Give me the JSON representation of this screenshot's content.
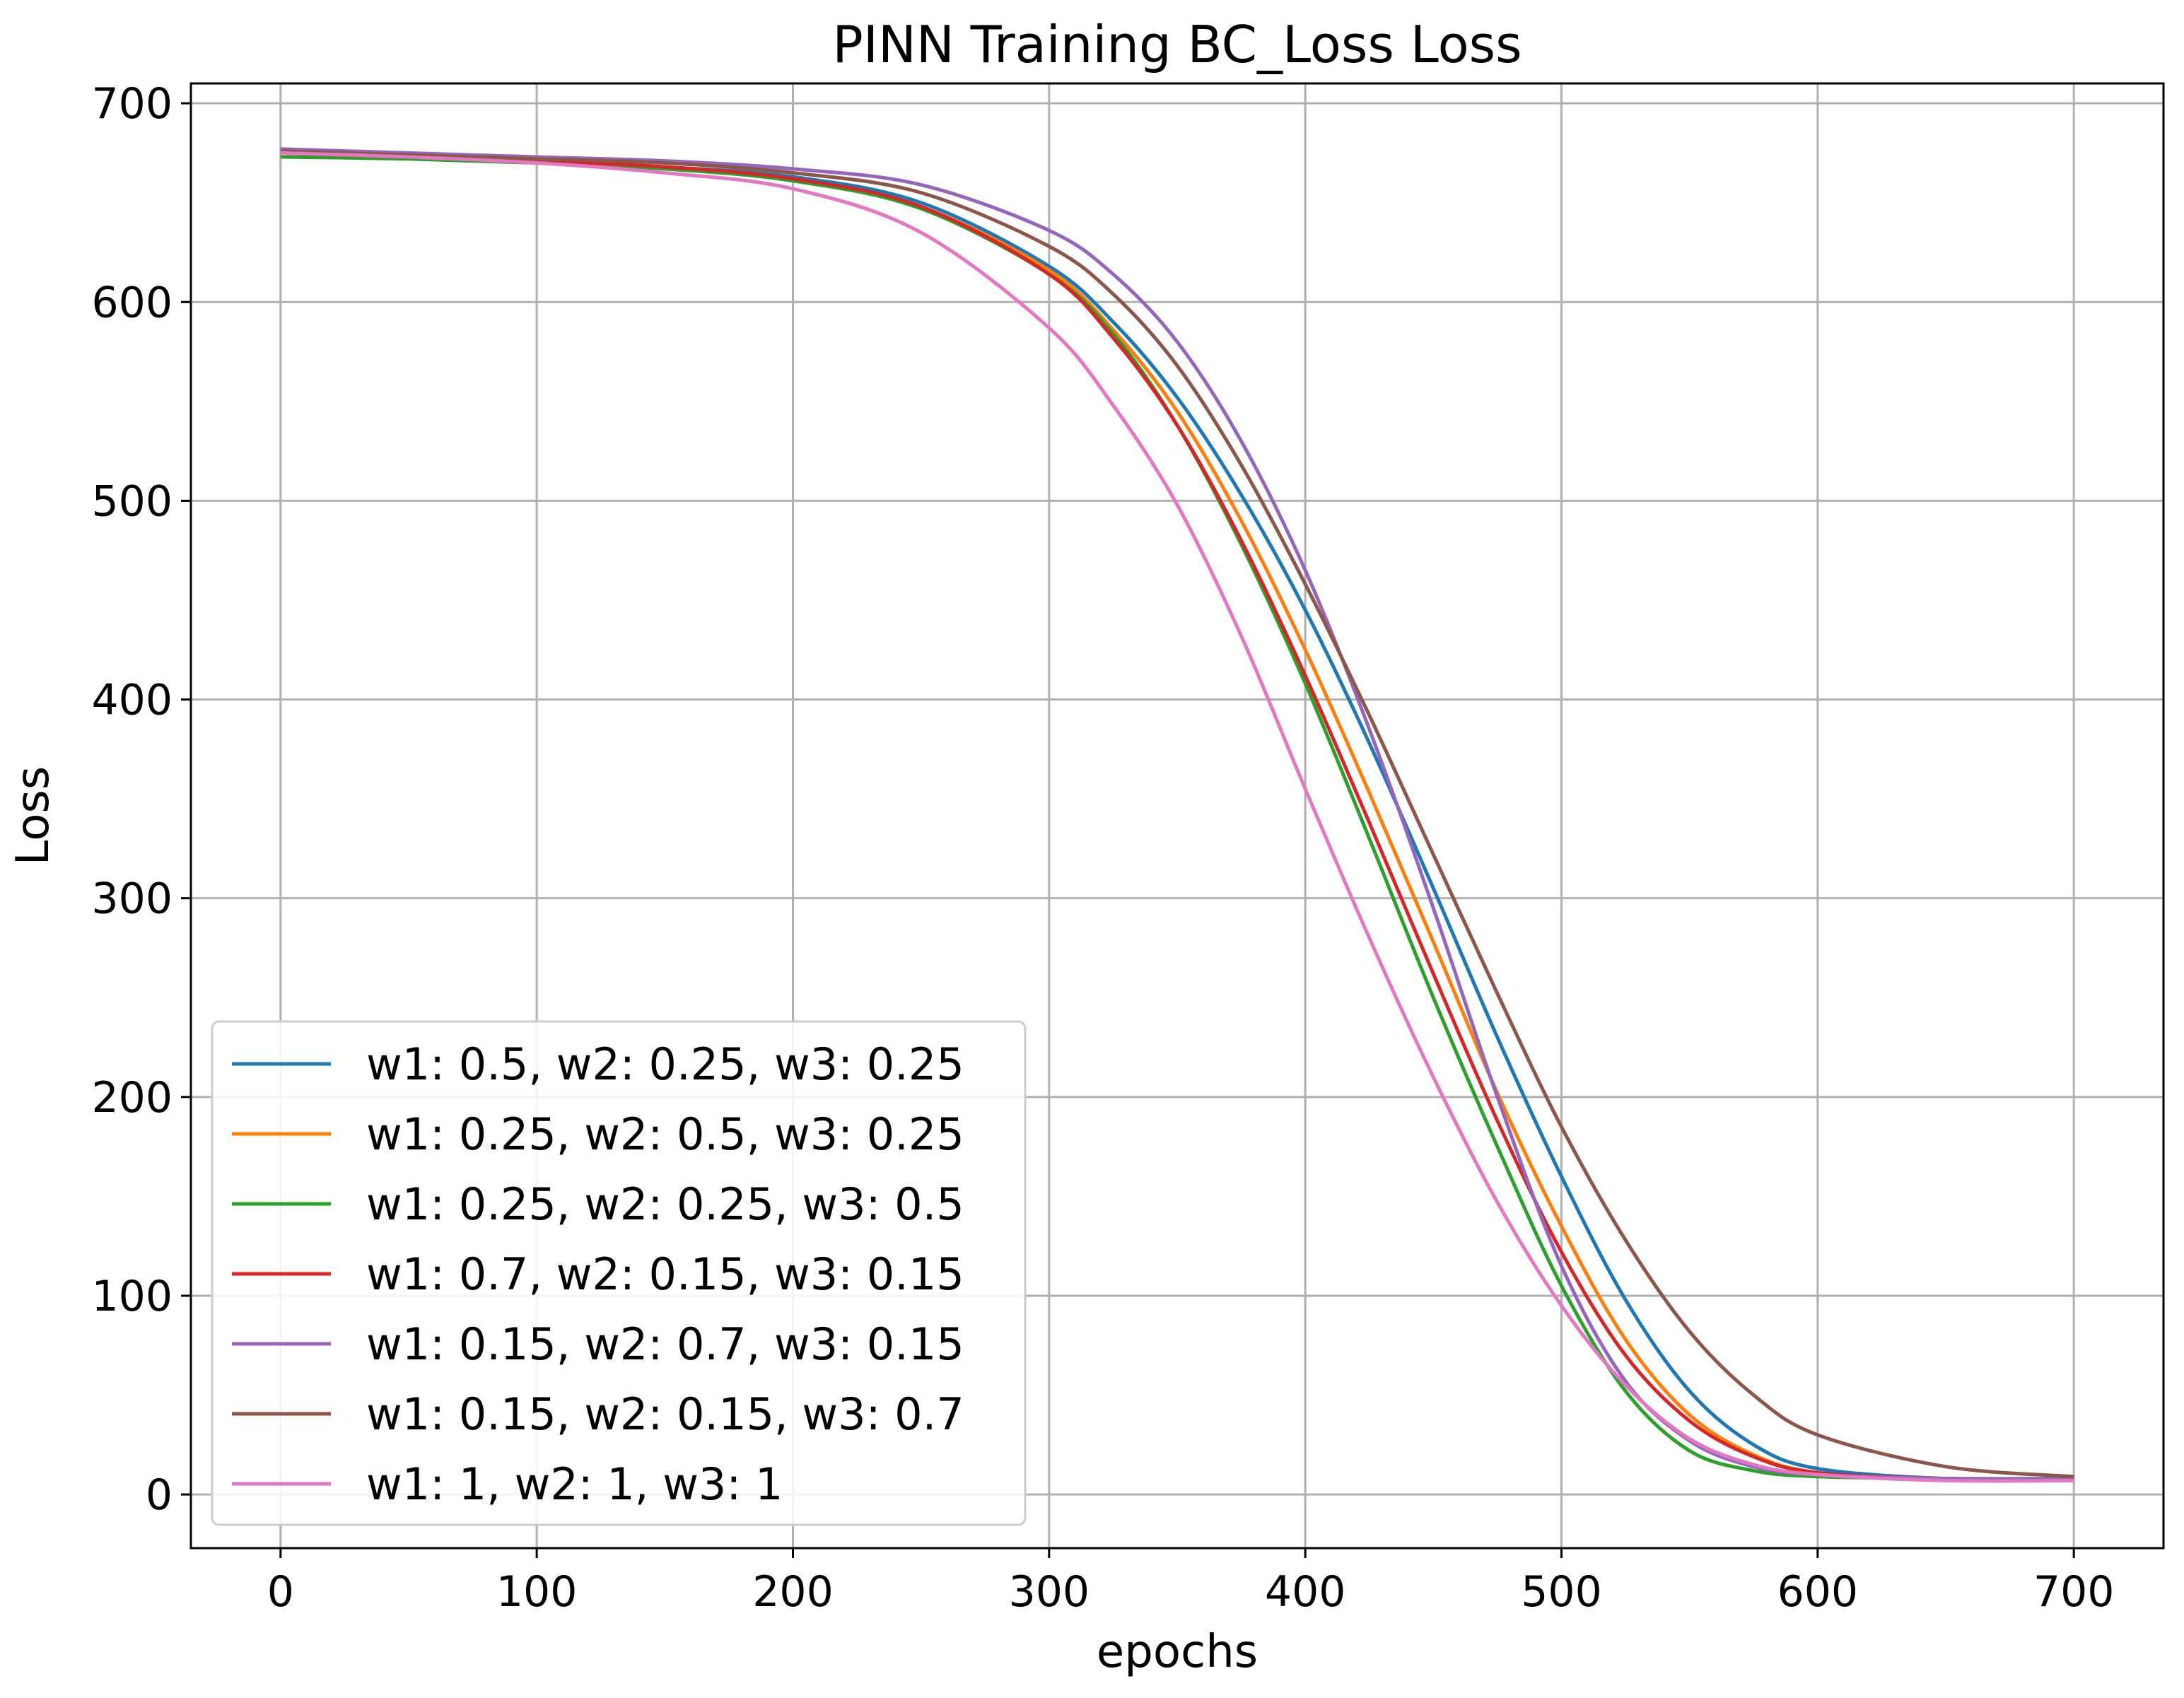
{
  "chart_data": {
    "type": "line",
    "title": "PINN Training BC_Loss Loss",
    "xlabel": "epochs",
    "ylabel": "Loss",
    "xlim": [
      -35,
      735
    ],
    "ylim": [
      -27,
      710
    ],
    "xticks": [
      0,
      100,
      200,
      300,
      400,
      500,
      600,
      700
    ],
    "yticks": [
      0,
      100,
      200,
      300,
      400,
      500,
      600,
      700
    ],
    "grid": true,
    "legend_position": "lower-left",
    "series": [
      {
        "name": "w1: 0.5, w2: 0.25, w3: 0.25",
        "color": "#1f77b4",
        "x": [
          0,
          50,
          100,
          150,
          200,
          250,
          300,
          325,
          350,
          375,
          400,
          425,
          450,
          475,
          500,
          525,
          550,
          575,
          600,
          650,
          700
        ],
        "y": [
          675,
          673,
          671,
          668,
          663,
          650,
          618,
          590,
          552,
          503,
          445,
          378,
          305,
          230,
          160,
          98,
          52,
          25,
          13,
          8,
          8
        ]
      },
      {
        "name": "w1: 0.25, w2: 0.5, w3: 0.25",
        "color": "#ff7f0e",
        "x": [
          0,
          50,
          100,
          150,
          200,
          250,
          300,
          325,
          350,
          375,
          400,
          425,
          450,
          475,
          500,
          525,
          550,
          575,
          600,
          650,
          700
        ],
        "y": [
          675,
          673,
          671,
          668,
          662,
          648,
          616,
          586,
          545,
          490,
          425,
          353,
          278,
          202,
          135,
          78,
          40,
          20,
          11,
          8,
          8
        ]
      },
      {
        "name": "w1: 0.25, w2: 0.25, w3: 0.5",
        "color": "#2ca02c",
        "x": [
          0,
          50,
          100,
          150,
          200,
          250,
          300,
          325,
          350,
          375,
          400,
          425,
          450,
          475,
          500,
          525,
          550,
          575,
          600,
          650,
          700
        ],
        "y": [
          673,
          672,
          670,
          667,
          661,
          647,
          614,
          584,
          538,
          478,
          408,
          330,
          250,
          175,
          105,
          52,
          22,
          12,
          9,
          8,
          8
        ]
      },
      {
        "name": "w1: 0.7, w2: 0.15, w3: 0.15",
        "color": "#d62728",
        "x": [
          0,
          50,
          100,
          150,
          200,
          250,
          300,
          325,
          350,
          375,
          400,
          425,
          450,
          475,
          500,
          525,
          550,
          575,
          600,
          650,
          700
        ],
        "y": [
          675,
          673,
          671,
          668,
          662,
          648,
          614,
          582,
          538,
          480,
          412,
          338,
          262,
          188,
          122,
          70,
          37,
          19,
          11,
          8,
          8
        ]
      },
      {
        "name": "w1: 0.15, w2: 0.7, w3: 0.15",
        "color": "#9467bd",
        "x": [
          0,
          50,
          100,
          150,
          200,
          250,
          300,
          325,
          350,
          375,
          400,
          425,
          450,
          475,
          500,
          525,
          550,
          575,
          600,
          650,
          700
        ],
        "y": [
          677,
          675,
          673,
          671,
          667,
          659,
          636,
          614,
          580,
          530,
          465,
          385,
          295,
          200,
          115,
          57,
          27,
          14,
          10,
          8,
          8
        ]
      },
      {
        "name": "w1: 0.15, w2: 0.15, w3: 0.7",
        "color": "#8c564b",
        "x": [
          0,
          50,
          100,
          150,
          200,
          250,
          300,
          325,
          350,
          375,
          400,
          425,
          450,
          475,
          500,
          525,
          550,
          575,
          600,
          650,
          700
        ],
        "y": [
          676,
          674,
          672,
          670,
          665,
          655,
          628,
          604,
          568,
          518,
          458,
          392,
          322,
          252,
          185,
          128,
          82,
          50,
          30,
          14,
          9
        ]
      },
      {
        "name": "w1: 1, w2: 1, w3: 1",
        "color": "#e377c2",
        "x": [
          0,
          50,
          100,
          150,
          200,
          250,
          300,
          325,
          350,
          375,
          400,
          425,
          450,
          475,
          500,
          525,
          550,
          575,
          600,
          650,
          700
        ],
        "y": [
          675,
          673,
          670,
          665,
          657,
          635,
          587,
          548,
          498,
          432,
          355,
          280,
          210,
          147,
          95,
          55,
          28,
          15,
          10,
          7,
          7
        ]
      }
    ]
  }
}
